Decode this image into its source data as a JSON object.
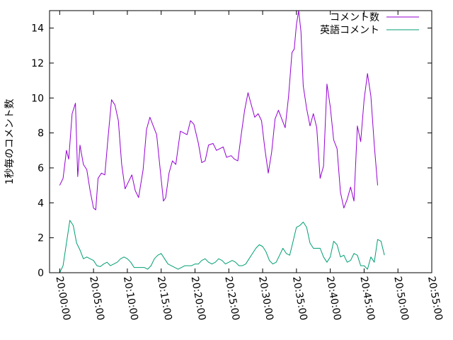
{
  "chart_data": {
    "type": "line",
    "ylabel": "1秒毎のコメント数",
    "xlabel": "",
    "title": "",
    "ylim": [
      0,
      15
    ],
    "y_ticks": [
      0,
      2,
      4,
      6,
      8,
      10,
      12,
      14
    ],
    "y_tick_labels": [
      "0",
      "2",
      "4",
      "6",
      "8",
      "10",
      "12",
      "14"
    ],
    "xlim": [
      "19:58:30",
      "20:55:00"
    ],
    "x_ticks": [
      "20:00:00",
      "20:05:00",
      "20:10:00",
      "20:15:00",
      "20:20:00",
      "20:25:00",
      "20:30:00",
      "20:35:00",
      "20:40:00",
      "20:45:00",
      "20:50:00",
      "20:55:00"
    ],
    "grid": false,
    "legend_position": "top-right",
    "series": [
      {
        "name": "コメント数",
        "color": "#9400d3",
        "points": [
          [
            "20:00:00",
            5.0
          ],
          [
            "20:00:30",
            5.4
          ],
          [
            "20:01:00",
            7.0
          ],
          [
            "20:01:20",
            6.5
          ],
          [
            "20:01:50",
            9.1
          ],
          [
            "20:02:20",
            9.7
          ],
          [
            "20:02:40",
            5.5
          ],
          [
            "20:03:00",
            7.3
          ],
          [
            "20:03:30",
            6.2
          ],
          [
            "20:04:00",
            5.9
          ],
          [
            "20:04:30",
            4.7
          ],
          [
            "20:05:00",
            3.7
          ],
          [
            "20:05:20",
            3.6
          ],
          [
            "20:05:40",
            5.4
          ],
          [
            "20:06:10",
            5.7
          ],
          [
            "20:06:40",
            5.6
          ],
          [
            "20:07:10",
            7.8
          ],
          [
            "20:07:40",
            9.9
          ],
          [
            "20:08:10",
            9.6
          ],
          [
            "20:08:40",
            8.7
          ],
          [
            "20:09:10",
            6.2
          ],
          [
            "20:09:40",
            4.8
          ],
          [
            "20:10:10",
            5.2
          ],
          [
            "20:10:40",
            5.6
          ],
          [
            "20:11:10",
            4.7
          ],
          [
            "20:11:40",
            4.3
          ],
          [
            "20:12:20",
            5.9
          ],
          [
            "20:12:50",
            8.2
          ],
          [
            "20:13:20",
            8.9
          ],
          [
            "20:13:50",
            8.4
          ],
          [
            "20:14:20",
            7.9
          ],
          [
            "20:14:50",
            6.0
          ],
          [
            "20:15:20",
            4.1
          ],
          [
            "20:15:40",
            4.3
          ],
          [
            "20:16:10",
            5.7
          ],
          [
            "20:16:40",
            6.4
          ],
          [
            "20:17:10",
            6.2
          ],
          [
            "20:17:50",
            8.1
          ],
          [
            "20:18:20",
            8.0
          ],
          [
            "20:18:50",
            7.9
          ],
          [
            "20:19:20",
            8.7
          ],
          [
            "20:19:50",
            8.5
          ],
          [
            "20:20:30",
            7.4
          ],
          [
            "20:21:00",
            6.3
          ],
          [
            "20:21:30",
            6.4
          ],
          [
            "20:22:00",
            7.3
          ],
          [
            "20:22:40",
            7.4
          ],
          [
            "20:23:10",
            7.0
          ],
          [
            "20:23:40",
            7.1
          ],
          [
            "20:24:10",
            7.2
          ],
          [
            "20:24:40",
            6.6
          ],
          [
            "20:25:20",
            6.7
          ],
          [
            "20:25:50",
            6.5
          ],
          [
            "20:26:20",
            6.4
          ],
          [
            "20:26:50",
            7.9
          ],
          [
            "20:27:20",
            9.3
          ],
          [
            "20:27:50",
            10.3
          ],
          [
            "20:28:20",
            9.6
          ],
          [
            "20:28:50",
            8.9
          ],
          [
            "20:29:20",
            9.1
          ],
          [
            "20:29:50",
            8.7
          ],
          [
            "20:30:20",
            7.1
          ],
          [
            "20:30:50",
            5.7
          ],
          [
            "20:31:20",
            6.9
          ],
          [
            "20:31:50",
            8.8
          ],
          [
            "20:32:20",
            9.3
          ],
          [
            "20:32:50",
            8.8
          ],
          [
            "20:33:20",
            8.3
          ],
          [
            "20:33:50",
            10.1
          ],
          [
            "20:34:20",
            12.6
          ],
          [
            "20:34:40",
            12.8
          ],
          [
            "20:35:00",
            14.2
          ],
          [
            "20:35:20",
            15.0
          ],
          [
            "20:35:40",
            13.8
          ],
          [
            "20:36:00",
            10.7
          ],
          [
            "20:36:30",
            9.4
          ],
          [
            "20:37:00",
            8.4
          ],
          [
            "20:37:30",
            9.1
          ],
          [
            "20:38:00",
            8.3
          ],
          [
            "20:38:30",
            5.4
          ],
          [
            "20:39:00",
            6.1
          ],
          [
            "20:39:30",
            10.8
          ],
          [
            "20:40:00",
            9.5
          ],
          [
            "20:40:30",
            7.6
          ],
          [
            "20:41:00",
            7.1
          ],
          [
            "20:41:30",
            4.6
          ],
          [
            "20:42:00",
            3.7
          ],
          [
            "20:42:30",
            4.2
          ],
          [
            "20:43:00",
            4.9
          ],
          [
            "20:43:30",
            4.1
          ],
          [
            "20:44:00",
            8.4
          ],
          [
            "20:44:30",
            7.5
          ],
          [
            "20:45:00",
            9.9
          ],
          [
            "20:45:30",
            11.4
          ],
          [
            "20:46:00",
            10.1
          ],
          [
            "20:46:30",
            7.3
          ],
          [
            "20:47:00",
            5.0
          ]
        ]
      },
      {
        "name": "英語コメント",
        "color": "#009e73",
        "points": [
          [
            "20:00:00",
            0.0
          ],
          [
            "20:00:30",
            0.4
          ],
          [
            "20:01:00",
            1.7
          ],
          [
            "20:01:30",
            3.0
          ],
          [
            "20:02:00",
            2.7
          ],
          [
            "20:02:30",
            1.7
          ],
          [
            "20:03:00",
            1.3
          ],
          [
            "20:03:30",
            0.8
          ],
          [
            "20:04:00",
            0.9
          ],
          [
            "20:04:30",
            0.8
          ],
          [
            "20:05:00",
            0.7
          ],
          [
            "20:05:30",
            0.4
          ],
          [
            "20:06:00",
            0.35
          ],
          [
            "20:06:30",
            0.5
          ],
          [
            "20:07:00",
            0.6
          ],
          [
            "20:07:30",
            0.4
          ],
          [
            "20:08:00",
            0.5
          ],
          [
            "20:08:30",
            0.6
          ],
          [
            "20:09:00",
            0.8
          ],
          [
            "20:09:30",
            0.9
          ],
          [
            "20:10:00",
            0.8
          ],
          [
            "20:10:30",
            0.6
          ],
          [
            "20:11:00",
            0.3
          ],
          [
            "20:11:30",
            0.3
          ],
          [
            "20:12:00",
            0.3
          ],
          [
            "20:12:30",
            0.3
          ],
          [
            "20:13:00",
            0.2
          ],
          [
            "20:13:30",
            0.4
          ],
          [
            "20:14:00",
            0.8
          ],
          [
            "20:14:30",
            1.0
          ],
          [
            "20:15:00",
            1.1
          ],
          [
            "20:15:30",
            0.8
          ],
          [
            "20:16:00",
            0.5
          ],
          [
            "20:16:30",
            0.4
          ],
          [
            "20:17:00",
            0.3
          ],
          [
            "20:17:30",
            0.2
          ],
          [
            "20:18:00",
            0.3
          ],
          [
            "20:18:30",
            0.4
          ],
          [
            "20:19:00",
            0.4
          ],
          [
            "20:19:30",
            0.4
          ],
          [
            "20:20:00",
            0.5
          ],
          [
            "20:20:30",
            0.5
          ],
          [
            "20:21:00",
            0.7
          ],
          [
            "20:21:30",
            0.8
          ],
          [
            "20:22:00",
            0.6
          ],
          [
            "20:22:30",
            0.5
          ],
          [
            "20:23:00",
            0.6
          ],
          [
            "20:23:30",
            0.8
          ],
          [
            "20:24:00",
            0.7
          ],
          [
            "20:24:30",
            0.5
          ],
          [
            "20:25:00",
            0.6
          ],
          [
            "20:25:30",
            0.7
          ],
          [
            "20:26:00",
            0.6
          ],
          [
            "20:26:30",
            0.4
          ],
          [
            "20:27:00",
            0.4
          ],
          [
            "20:27:30",
            0.5
          ],
          [
            "20:28:00",
            0.8
          ],
          [
            "20:28:30",
            1.1
          ],
          [
            "20:29:00",
            1.4
          ],
          [
            "20:29:30",
            1.6
          ],
          [
            "20:30:00",
            1.5
          ],
          [
            "20:30:30",
            1.2
          ],
          [
            "20:31:00",
            0.7
          ],
          [
            "20:31:30",
            0.5
          ],
          [
            "20:32:00",
            0.6
          ],
          [
            "20:32:30",
            1.0
          ],
          [
            "20:33:00",
            1.4
          ],
          [
            "20:33:30",
            1.1
          ],
          [
            "20:34:00",
            1.0
          ],
          [
            "20:34:30",
            1.8
          ],
          [
            "20:35:00",
            2.6
          ],
          [
            "20:35:30",
            2.7
          ],
          [
            "20:36:00",
            2.9
          ],
          [
            "20:36:30",
            2.6
          ],
          [
            "20:37:00",
            1.7
          ],
          [
            "20:37:30",
            1.4
          ],
          [
            "20:38:00",
            1.4
          ],
          [
            "20:38:30",
            1.4
          ],
          [
            "20:39:00",
            0.9
          ],
          [
            "20:39:30",
            0.6
          ],
          [
            "20:40:00",
            0.9
          ],
          [
            "20:40:30",
            1.8
          ],
          [
            "20:41:00",
            1.6
          ],
          [
            "20:41:30",
            0.9
          ],
          [
            "20:42:00",
            1.0
          ],
          [
            "20:42:30",
            0.6
          ],
          [
            "20:43:00",
            0.7
          ],
          [
            "20:43:30",
            1.1
          ],
          [
            "20:44:00",
            1.0
          ],
          [
            "20:44:30",
            0.4
          ],
          [
            "20:45:00",
            0.4
          ],
          [
            "20:45:30",
            0.2
          ],
          [
            "20:46:00",
            0.9
          ],
          [
            "20:46:30",
            0.6
          ],
          [
            "20:47:00",
            1.9
          ],
          [
            "20:47:30",
            1.8
          ],
          [
            "20:48:00",
            1.0
          ]
        ]
      }
    ]
  }
}
